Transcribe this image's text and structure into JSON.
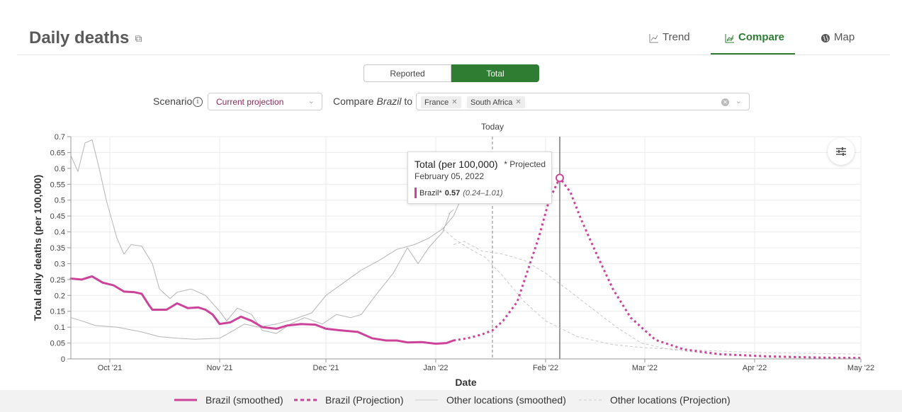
{
  "header": {
    "title": "Daily deaths",
    "tabs": [
      {
        "label": "Trend",
        "icon": "line-chart-icon"
      },
      {
        "label": "Compare",
        "icon": "compare-chart-icon"
      },
      {
        "label": "Map",
        "icon": "globe-icon"
      }
    ],
    "active_tab": "Compare"
  },
  "toggle": {
    "options": [
      "Reported",
      "Total"
    ],
    "selected": "Total"
  },
  "scenario": {
    "label": "Scenario",
    "value": "Current projection"
  },
  "compare": {
    "label_prefix": "Compare",
    "country": "Brazil",
    "label_suffix": "to",
    "selected": [
      "France",
      "South Africa"
    ]
  },
  "tooltip": {
    "title": "Total (per 100,000)",
    "projected_note": "* Projected",
    "date": "February 05, 2022",
    "series": "Brazil*",
    "value": "0.57",
    "range": "(0.24–1.01)"
  },
  "legend": [
    {
      "label": "Brazil (smoothed)",
      "style": "solid-thick",
      "color": "#cc4499"
    },
    {
      "label": "Brazil (Projection)",
      "style": "dotted-thick",
      "color": "#cc4499"
    },
    {
      "label": "Other locations (smoothed)",
      "style": "solid-thin",
      "color": "#cccccc"
    },
    {
      "label": "Other locations (Projection)",
      "style": "dashed-thin",
      "color": "#cccccc"
    }
  ],
  "colors": {
    "brazil": "#cc4499",
    "other": "#b5b5b5",
    "accent": "#2e7d32"
  },
  "chart_data": {
    "type": "line",
    "xlabel": "Date",
    "ylabel": "Total daily deaths (per 100,000)",
    "ylim": [
      0,
      0.7
    ],
    "xlim": [
      "2021-09-20",
      "2022-05-01"
    ],
    "y_ticks": [
      "0",
      "0.05",
      "0.1",
      "0.15",
      "0.2",
      "0.25",
      "0.3",
      "0.35",
      "0.4",
      "0.45",
      "0.5",
      "0.55",
      "0.6",
      "0.65",
      "0.7"
    ],
    "x_ticks": [
      {
        "date": "2021-10-01",
        "label": "Oct '21"
      },
      {
        "date": "2021-11-01",
        "label": "Nov '21"
      },
      {
        "date": "2021-12-01",
        "label": "Dec '21"
      },
      {
        "date": "2022-01-01",
        "label": "Jan '22"
      },
      {
        "date": "2022-02-01",
        "label": "Feb '22"
      },
      {
        "date": "2022-03-01",
        "label": "Mar '22"
      },
      {
        "date": "2022-04-01",
        "label": "Apr '22"
      },
      {
        "date": "2022-05-01",
        "label": "May '22"
      }
    ],
    "today": {
      "date": "2022-01-17",
      "label": "Today"
    },
    "hover_date": "2022-02-05",
    "grid": true,
    "series": [
      {
        "name": "Brazil (smoothed)",
        "style": "solid-thick",
        "color": "#cc4499",
        "points": [
          [
            "2021-09-20",
            0.253
          ],
          [
            "2021-09-23",
            0.25
          ],
          [
            "2021-09-26",
            0.26
          ],
          [
            "2021-09-29",
            0.24
          ],
          [
            "2021-10-02",
            0.232
          ],
          [
            "2021-10-05",
            0.212
          ],
          [
            "2021-10-08",
            0.21
          ],
          [
            "2021-10-10",
            0.205
          ],
          [
            "2021-10-12",
            0.17
          ],
          [
            "2021-10-13",
            0.155
          ],
          [
            "2021-10-17",
            0.155
          ],
          [
            "2021-10-20",
            0.175
          ],
          [
            "2021-10-23",
            0.16
          ],
          [
            "2021-10-26",
            0.162
          ],
          [
            "2021-10-28",
            0.155
          ],
          [
            "2021-10-30",
            0.14
          ],
          [
            "2021-11-01",
            0.11
          ],
          [
            "2021-11-04",
            0.115
          ],
          [
            "2021-11-07",
            0.133
          ],
          [
            "2021-11-10",
            0.12
          ],
          [
            "2021-11-13",
            0.1
          ],
          [
            "2021-11-17",
            0.095
          ],
          [
            "2021-11-20",
            0.105
          ],
          [
            "2021-11-24",
            0.11
          ],
          [
            "2021-11-28",
            0.108
          ],
          [
            "2021-12-01",
            0.095
          ],
          [
            "2021-12-05",
            0.09
          ],
          [
            "2021-12-10",
            0.085
          ],
          [
            "2021-12-14",
            0.065
          ],
          [
            "2021-12-18",
            0.058
          ],
          [
            "2021-12-21",
            0.058
          ],
          [
            "2021-12-24",
            0.052
          ],
          [
            "2021-12-28",
            0.053
          ],
          [
            "2022-01-01",
            0.048
          ],
          [
            "2022-01-04",
            0.05
          ],
          [
            "2022-01-06",
            0.058
          ]
        ]
      },
      {
        "name": "Brazil (Projection)",
        "style": "dotted-thick",
        "color": "#cc4499",
        "points": [
          [
            "2022-01-06",
            0.058
          ],
          [
            "2022-01-10",
            0.065
          ],
          [
            "2022-01-14",
            0.077
          ],
          [
            "2022-01-17",
            0.09
          ],
          [
            "2022-01-20",
            0.12
          ],
          [
            "2022-01-24",
            0.18
          ],
          [
            "2022-01-27",
            0.28
          ],
          [
            "2022-01-30",
            0.38
          ],
          [
            "2022-02-02",
            0.5
          ],
          [
            "2022-02-05",
            0.57
          ],
          [
            "2022-02-08",
            0.525
          ],
          [
            "2022-02-11",
            0.44
          ],
          [
            "2022-02-15",
            0.34
          ],
          [
            "2022-02-20",
            0.22
          ],
          [
            "2022-02-25",
            0.13
          ],
          [
            "2022-03-04",
            0.06
          ],
          [
            "2022-03-12",
            0.03
          ],
          [
            "2022-03-22",
            0.015
          ],
          [
            "2022-04-05",
            0.008
          ],
          [
            "2022-04-20",
            0.004
          ],
          [
            "2022-05-01",
            0.003
          ]
        ]
      },
      {
        "name": "France (smoothed)",
        "style": "solid-thin",
        "color": "#b5b5b5",
        "points": [
          [
            "2021-09-20",
            0.13
          ],
          [
            "2021-09-23",
            0.12
          ],
          [
            "2021-09-27",
            0.105
          ],
          [
            "2021-10-03",
            0.1
          ],
          [
            "2021-10-10",
            0.085
          ],
          [
            "2021-10-15",
            0.07
          ],
          [
            "2021-10-20",
            0.065
          ],
          [
            "2021-10-25",
            0.062
          ],
          [
            "2021-11-01",
            0.065
          ],
          [
            "2021-11-05",
            0.09
          ],
          [
            "2021-11-08",
            0.11
          ],
          [
            "2021-11-12",
            0.1
          ],
          [
            "2021-11-17",
            0.11
          ],
          [
            "2021-11-22",
            0.125
          ],
          [
            "2021-11-27",
            0.145
          ],
          [
            "2021-12-01",
            0.2
          ],
          [
            "2021-12-06",
            0.24
          ],
          [
            "2021-12-11",
            0.28
          ],
          [
            "2021-12-16",
            0.31
          ],
          [
            "2021-12-21",
            0.345
          ],
          [
            "2021-12-26",
            0.36
          ],
          [
            "2021-12-30",
            0.38
          ],
          [
            "2022-01-03",
            0.41
          ],
          [
            "2022-01-06",
            0.45
          ],
          [
            "2022-01-08",
            0.5
          ],
          [
            "2022-01-10",
            0.55
          ]
        ]
      },
      {
        "name": "France (Projection)",
        "style": "dashed-thin",
        "color": "#c8c8c8",
        "points": [
          [
            "2022-01-03",
            0.41
          ],
          [
            "2022-01-06",
            0.38
          ],
          [
            "2022-01-10",
            0.35
          ],
          [
            "2022-01-15",
            0.32
          ],
          [
            "2022-01-20",
            0.26
          ],
          [
            "2022-01-26",
            0.18
          ],
          [
            "2022-02-01",
            0.12
          ],
          [
            "2022-02-10",
            0.07
          ],
          [
            "2022-02-20",
            0.045
          ],
          [
            "2022-03-01",
            0.035
          ],
          [
            "2022-03-15",
            0.028
          ],
          [
            "2022-04-01",
            0.02
          ],
          [
            "2022-05-01",
            0.015
          ]
        ]
      },
      {
        "name": "South Africa (smoothed)",
        "style": "solid-thin",
        "color": "#b5b5b5",
        "points": [
          [
            "2021-09-20",
            0.64
          ],
          [
            "2021-09-22",
            0.59
          ],
          [
            "2021-09-24",
            0.68
          ],
          [
            "2021-09-26",
            0.69
          ],
          [
            "2021-09-28",
            0.6
          ],
          [
            "2021-09-30",
            0.5
          ],
          [
            "2021-10-03",
            0.38
          ],
          [
            "2021-10-05",
            0.33
          ],
          [
            "2021-10-07",
            0.36
          ],
          [
            "2021-10-10",
            0.355
          ],
          [
            "2021-10-13",
            0.3
          ],
          [
            "2021-10-15",
            0.22
          ],
          [
            "2021-10-18",
            0.19
          ],
          [
            "2021-10-20",
            0.21
          ],
          [
            "2021-10-24",
            0.22
          ],
          [
            "2021-10-28",
            0.2
          ],
          [
            "2021-11-01",
            0.15
          ],
          [
            "2021-11-03",
            0.12
          ],
          [
            "2021-11-06",
            0.16
          ],
          [
            "2021-11-10",
            0.14
          ],
          [
            "2021-11-13",
            0.09
          ],
          [
            "2021-11-17",
            0.08
          ],
          [
            "2021-11-21",
            0.11
          ],
          [
            "2021-11-25",
            0.13
          ],
          [
            "2021-11-30",
            0.11
          ],
          [
            "2021-12-04",
            0.14
          ],
          [
            "2021-12-08",
            0.13
          ],
          [
            "2021-12-11",
            0.14
          ],
          [
            "2021-12-15",
            0.2
          ],
          [
            "2021-12-20",
            0.27
          ],
          [
            "2021-12-24",
            0.35
          ],
          [
            "2021-12-27",
            0.3
          ],
          [
            "2021-12-30",
            0.35
          ],
          [
            "2022-01-03",
            0.4
          ],
          [
            "2022-01-05",
            0.46
          ],
          [
            "2022-01-06",
            0.47
          ]
        ]
      },
      {
        "name": "South Africa (Projection)",
        "style": "dashed-thin",
        "color": "#c8c8c8",
        "points": [
          [
            "2022-01-06",
            0.36
          ],
          [
            "2022-01-09",
            0.37
          ],
          [
            "2022-01-14",
            0.34
          ],
          [
            "2022-01-20",
            0.33
          ],
          [
            "2022-01-26",
            0.31
          ],
          [
            "2022-02-01",
            0.27
          ],
          [
            "2022-02-07",
            0.22
          ],
          [
            "2022-02-14",
            0.16
          ],
          [
            "2022-02-21",
            0.1
          ],
          [
            "2022-02-28",
            0.05
          ],
          [
            "2022-03-08",
            0.03
          ],
          [
            "2022-03-20",
            0.015
          ],
          [
            "2022-04-05",
            0.005
          ],
          [
            "2022-04-20",
            0.002
          ],
          [
            "2022-05-01",
            0.001
          ]
        ]
      }
    ]
  }
}
